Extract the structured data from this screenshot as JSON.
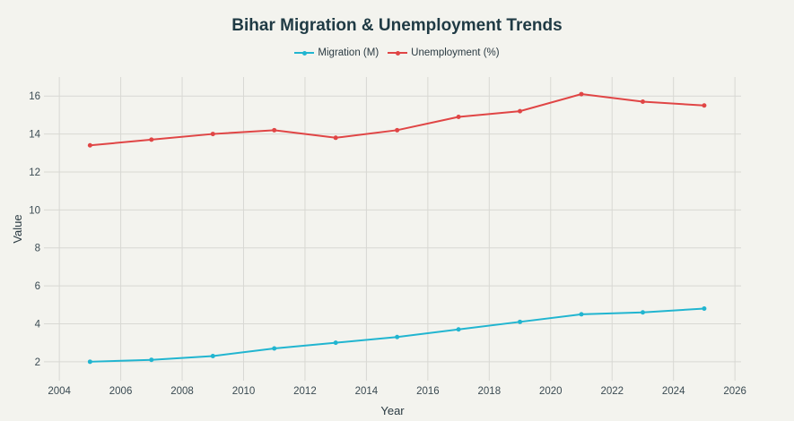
{
  "chart_data": {
    "type": "line",
    "title": "Bihar Migration & Unemployment Trends",
    "xlabel": "Year",
    "ylabel": "Value",
    "xlim": [
      2003.5,
      2026.2
    ],
    "ylim": [
      1,
      17
    ],
    "xticks": [
      2004,
      2006,
      2008,
      2010,
      2012,
      2014,
      2016,
      2018,
      2020,
      2022,
      2024,
      2026
    ],
    "yticks": [
      2,
      4,
      6,
      8,
      10,
      12,
      14,
      16
    ],
    "grid": true,
    "legend": "top-center",
    "x": [
      2005,
      2007,
      2009,
      2011,
      2013,
      2015,
      2017,
      2019,
      2021,
      2023,
      2025
    ],
    "series": [
      {
        "name": "Migration (M)",
        "color": "#21b5d0",
        "values": [
          2.0,
          2.1,
          2.3,
          2.7,
          3.0,
          3.3,
          3.7,
          4.1,
          4.5,
          4.6,
          4.8
        ]
      },
      {
        "name": "Unemployment (%)",
        "color": "#e04545",
        "values": [
          13.4,
          13.7,
          14.0,
          14.2,
          13.8,
          14.2,
          14.9,
          15.2,
          16.1,
          15.7,
          15.5
        ]
      }
    ]
  }
}
